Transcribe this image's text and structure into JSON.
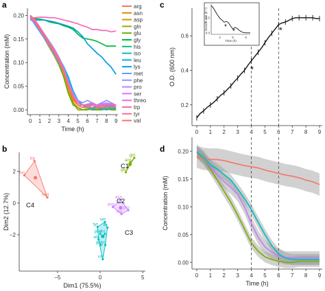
{
  "panels": [
    {
      "id": "a",
      "label": "a"
    },
    {
      "id": "b",
      "label": "b"
    },
    {
      "id": "c",
      "label": "c"
    },
    {
      "id": "d",
      "label": "d"
    }
  ],
  "chart_data": [
    {
      "panel": "a",
      "type": "line",
      "xlabel": "Time (h)",
      "ylabel": "Concentration (mM)",
      "xlim": [
        -0.3,
        9.2
      ],
      "ylim": [
        -0.01,
        0.215
      ],
      "xticks": [
        "0",
        "1",
        "2",
        "3",
        "4",
        "5",
        "6",
        "7",
        "8",
        "9"
      ],
      "yticks": [
        "0.00",
        "0.05",
        "0.10",
        "0.15",
        "0.20"
      ],
      "grid": false,
      "legend_position": "right",
      "x": [
        0,
        0.5,
        1,
        1.5,
        2,
        2.5,
        3,
        3.5,
        4,
        4.5,
        5,
        5.5,
        6,
        6.5,
        7,
        7.5,
        8,
        8.5,
        9
      ],
      "series": [
        {
          "name": "arg",
          "color": "#f2766d",
          "values": [
            0.195,
            0.185,
            0.17,
            0.155,
            0.14,
            0.125,
            0.108,
            0.085,
            0.05,
            0.02,
            0.01,
            0.01,
            0.005,
            0.0,
            0.01,
            0.015,
            0.005,
            0.0,
            0.005
          ]
        },
        {
          "name": "asn",
          "color": "#e58700",
          "values": [
            0.2,
            0.19,
            0.175,
            0.158,
            0.14,
            0.125,
            0.105,
            0.08,
            0.048,
            0.02,
            0.01,
            0.005,
            0.008,
            0.012,
            0.008,
            0.004,
            0.01,
            0.014,
            0.008
          ]
        },
        {
          "name": "asp",
          "color": "#c99800",
          "values": [
            0.2,
            0.188,
            0.172,
            0.155,
            0.138,
            0.12,
            0.102,
            0.078,
            0.04,
            0.015,
            0.005,
            0.0,
            0.002,
            0.004,
            0.003,
            0.002,
            0.004,
            0.003,
            0.002
          ]
        },
        {
          "name": "gln",
          "color": "#a3a500",
          "values": [
            0.198,
            0.185,
            0.168,
            0.15,
            0.132,
            0.115,
            0.095,
            0.07,
            0.035,
            0.015,
            0.0,
            0.0,
            0.002,
            0.0,
            0.0,
            0.003,
            0.0,
            0.002,
            0.0
          ]
        },
        {
          "name": "glu",
          "color": "#6bb100",
          "values": [
            0.2,
            0.19,
            0.172,
            0.155,
            0.138,
            0.12,
            0.098,
            0.07,
            0.035,
            0.01,
            0.005,
            0.0,
            0.0,
            0.002,
            0.0,
            0.0,
            0.002,
            0.0,
            0.0
          ]
        },
        {
          "name": "gly",
          "color": "#00ba38",
          "values": [
            0.195,
            0.193,
            0.192,
            0.19,
            0.186,
            0.184,
            0.182,
            0.178,
            0.175,
            0.17,
            0.16,
            0.152,
            0.15,
            0.148,
            0.145,
            0.14,
            0.135,
            0.135,
            0.135
          ]
        },
        {
          "name": "his",
          "color": "#00bf7d",
          "values": [
            0.2,
            0.188,
            0.17,
            0.152,
            0.135,
            0.12,
            0.102,
            0.08,
            0.055,
            0.03,
            0.015,
            0.01,
            0.01,
            0.015,
            0.01,
            0.01,
            0.012,
            0.01,
            0.01
          ]
        },
        {
          "name": "iso",
          "color": "#00c0b8",
          "values": [
            0.195,
            0.185,
            0.17,
            0.155,
            0.14,
            0.125,
            0.11,
            0.09,
            0.065,
            0.04,
            0.02,
            0.01,
            0.005,
            0.005,
            0.008,
            0.005,
            0.005,
            0.008,
            0.005
          ]
        },
        {
          "name": "leu",
          "color": "#00b0f6",
          "values": [
            0.192,
            0.184,
            0.17,
            0.155,
            0.14,
            0.125,
            0.11,
            0.092,
            0.07,
            0.04,
            0.02,
            0.01,
            0.005,
            0.0,
            0.005,
            0.002,
            0.0,
            0.004,
            0.002
          ]
        },
        {
          "name": "lys",
          "color": "#009edf",
          "values": [
            0.19,
            0.19,
            0.19,
            0.19,
            0.188,
            0.186,
            0.183,
            0.18,
            0.177,
            0.173,
            0.165,
            0.155,
            0.14,
            0.13,
            0.12,
            0.112,
            0.1,
            0.09,
            0.075
          ]
        },
        {
          "name": "met",
          "color": "#619cff",
          "values": [
            0.195,
            0.18,
            0.165,
            0.15,
            0.135,
            0.118,
            0.1,
            0.08,
            0.05,
            0.025,
            0.01,
            0.005,
            0.005,
            0.01,
            0.008,
            0.005,
            0.008,
            0.01,
            0.008
          ]
        },
        {
          "name": "phe",
          "color": "#8f91ff",
          "values": [
            0.2,
            0.19,
            0.175,
            0.16,
            0.145,
            0.13,
            0.112,
            0.09,
            0.06,
            0.035,
            0.02,
            0.015,
            0.02,
            0.015,
            0.01,
            0.015,
            0.02,
            0.015,
            0.01
          ]
        },
        {
          "name": "pro",
          "color": "#b983ff",
          "values": [
            0.198,
            0.188,
            0.172,
            0.158,
            0.142,
            0.128,
            0.11,
            0.088,
            0.06,
            0.03,
            0.015,
            0.01,
            0.012,
            0.015,
            0.01,
            0.012,
            0.015,
            0.012,
            0.01
          ]
        },
        {
          "name": "ser",
          "color": "#db72fb",
          "values": [
            0.195,
            0.185,
            0.17,
            0.155,
            0.14,
            0.122,
            0.105,
            0.08,
            0.05,
            0.025,
            0.01,
            0.005,
            0.005,
            0.005,
            0.005,
            0.005,
            0.005,
            0.005,
            0.005
          ]
        },
        {
          "name": "threo",
          "color": "#f365e6",
          "values": [
            0.2,
            0.188,
            0.172,
            0.156,
            0.14,
            0.124,
            0.106,
            0.082,
            0.052,
            0.028,
            0.015,
            0.01,
            0.012,
            0.01,
            0.008,
            0.01,
            0.012,
            0.01,
            0.008
          ]
        },
        {
          "name": "trp",
          "color": "#ff64b0",
          "values": [
            0.195,
            0.195,
            0.196,
            0.196,
            0.195,
            0.195,
            0.193,
            0.19,
            0.188,
            0.185,
            0.182,
            0.178,
            0.175,
            0.17,
            0.17,
            0.168,
            0.168,
            0.165,
            0.167
          ]
        },
        {
          "name": "tyr",
          "color": "#ff6c91",
          "values": [
            0.2,
            0.19,
            0.174,
            0.158,
            0.142,
            0.126,
            0.108,
            0.085,
            0.055,
            0.03,
            0.015,
            0.01,
            0.01,
            0.012,
            0.01,
            0.008,
            0.01,
            0.012,
            0.01
          ]
        },
        {
          "name": "val",
          "color": "#ff6d6d",
          "values": [
            0.198,
            0.186,
            0.17,
            0.154,
            0.138,
            0.122,
            0.104,
            0.08,
            0.05,
            0.025,
            0.01,
            0.005,
            0.005,
            0.005,
            0.005,
            0.005,
            0.005,
            0.005,
            0.005
          ]
        }
      ]
    },
    {
      "panel": "b",
      "type": "scatter",
      "xlabel": "Dim1 (75.5%)",
      "ylabel": "Dim2 (12.7%)",
      "xlim": [
        -9.5,
        5.3
      ],
      "ylim": [
        -4.3,
        3.2
      ],
      "xticks": [
        -5,
        0,
        5
      ],
      "yticks": [
        2,
        0,
        -2
      ],
      "xtick_labels": [
        "−5",
        "0",
        "5"
      ],
      "ytick_labels": [
        "2",
        "0",
        "−2"
      ],
      "grid": false,
      "clusters": [
        {
          "name": "C1",
          "color": "#7cae00",
          "points": [
            {
              "label": "gln",
              "x": 4.0,
              "y": 2.85
            },
            {
              "label": "arg",
              "x": 3.5,
              "y": 2.55
            },
            {
              "label": "glu",
              "x": 3.0,
              "y": 1.95
            }
          ]
        },
        {
          "name": "C2",
          "color": "#c77cff",
          "points": [
            {
              "label": "asn",
              "x": 2.4,
              "y": 0.2
            },
            {
              "label": "asp",
              "x": 1.5,
              "y": -0.25
            },
            {
              "label": "pro",
              "x": 3.3,
              "y": -0.45
            },
            {
              "label": "leu",
              "x": 2.5,
              "y": -0.7
            }
          ]
        },
        {
          "name": "C3",
          "color": "#00bfc4",
          "points": [
            {
              "label": "ser",
              "x": 0.55,
              "y": -1.2
            },
            {
              "label": "tyr",
              "x": -0.3,
              "y": -1.5
            },
            {
              "label": "ile",
              "x": 0.85,
              "y": -1.55
            },
            {
              "label": "phe",
              "x": 0.0,
              "y": -1.95
            },
            {
              "label": "thr",
              "x": 0.55,
              "y": -1.95
            },
            {
              "label": "ala",
              "x": -0.2,
              "y": -2.3
            },
            {
              "label": "gly",
              "x": 0.05,
              "y": -2.65
            },
            {
              "label": "lys",
              "x": 0.6,
              "y": -2.65
            },
            {
              "label": "val",
              "x": 0.3,
              "y": -3.55
            }
          ]
        },
        {
          "name": "C4",
          "color": "#f8766d",
          "points": [
            {
              "label": "trp",
              "x": -7.7,
              "y": 2.65
            },
            {
              "label": "his",
              "x": -8.9,
              "y": 1.75
            },
            {
              "label": "met",
              "x": -6.2,
              "y": 0.35
            }
          ]
        }
      ],
      "centroids": [
        {
          "name": "C1",
          "x": 3.5,
          "y": 2.45
        },
        {
          "name": "C2",
          "x": 2.4,
          "y": -0.3
        },
        {
          "name": "C3",
          "x": 0.3,
          "y": -2.1
        },
        {
          "name": "C4",
          "x": -7.6,
          "y": 1.6
        }
      ]
    },
    {
      "panel": "c",
      "type": "line",
      "xlabel": "",
      "ylabel": "O.D. (600 nm)",
      "xlim": [
        -0.35,
        9.2
      ],
      "ylim": [
        0.08,
        0.76
      ],
      "xticks": [
        "0",
        "1",
        "2",
        "3",
        "4",
        "5",
        "6",
        "7",
        "8",
        "9"
      ],
      "yticks": [
        "0.2",
        "0.4",
        "0.6"
      ],
      "grid": false,
      "x": [
        0,
        0.25,
        0.5,
        0.75,
        1,
        1.25,
        1.5,
        1.75,
        2,
        2.25,
        2.5,
        2.75,
        3,
        3.25,
        3.5,
        3.75,
        4,
        4.25,
        4.5,
        4.75,
        5,
        5.25,
        5.5,
        5.75,
        6,
        6.25,
        6.5,
        6.75,
        7,
        7.25,
        7.5,
        7.75,
        8,
        8.25,
        8.5,
        8.75,
        9
      ],
      "values": [
        0.125,
        0.15,
        0.165,
        0.185,
        0.2,
        0.215,
        0.235,
        0.255,
        0.27,
        0.29,
        0.31,
        0.335,
        0.355,
        0.38,
        0.4,
        0.43,
        0.455,
        0.48,
        0.505,
        0.53,
        0.56,
        0.59,
        0.615,
        0.64,
        0.665,
        0.675,
        0.68,
        0.69,
        0.7,
        0.705,
        0.705,
        0.705,
        0.705,
        0.705,
        0.705,
        0.7,
        0.7
      ],
      "vlines": [
        4,
        6
      ],
      "markers": [
        {
          "label": "*",
          "x": 4.05,
          "y": 0.405
        },
        {
          "label": "*",
          "x": 6.15,
          "y": 0.63
        }
      ],
      "inset": {
        "xlabel": "Time (h)",
        "ylabel": "Growth rate (h⁻¹)",
        "xticks": [
          "2",
          "5",
          "8"
        ],
        "yticks": [
          "0.0",
          "0.5"
        ],
        "xlim": [
          0,
          9
        ],
        "ylim": [
          -0.05,
          0.95
        ],
        "x": [
          0,
          0.5,
          1,
          1.5,
          2,
          2.5,
          3,
          3.5,
          4,
          4.5,
          5,
          5.5,
          6,
          6.5,
          7,
          7.5,
          8,
          8.5,
          9
        ],
        "values": [
          0.9,
          0.82,
          0.7,
          0.58,
          0.48,
          0.42,
          0.35,
          0.38,
          0.33,
          0.22,
          0.12,
          0.18,
          0.14,
          0.08,
          0.03,
          0.01,
          0.0,
          0.0,
          0.0
        ],
        "markers": [
          {
            "label": "*",
            "x": 3.3,
            "y": 0.22
          },
          {
            "label": "*",
            "x": 5.2,
            "y": 0.08
          }
        ]
      }
    },
    {
      "panel": "d",
      "type": "line",
      "xlabel": "Time (h)",
      "ylabel": "Concentration (mM)",
      "xlim": [
        -0.35,
        9.2
      ],
      "ylim": [
        -0.012,
        0.225
      ],
      "xticks": [
        "0",
        "1",
        "2",
        "3",
        "4",
        "5",
        "6",
        "7",
        "8",
        "9"
      ],
      "yticks": [
        "0.00",
        "0.05",
        "0.10",
        "0.15",
        "0.20"
      ],
      "grid": false,
      "vlines": [
        4,
        6
      ],
      "x": [
        0,
        0.5,
        1,
        1.5,
        2,
        2.5,
        3,
        3.5,
        4,
        4.5,
        5,
        5.5,
        6,
        6.5,
        7,
        7.5,
        8,
        8.5,
        9
      ],
      "series": [
        {
          "color": "#f8766d",
          "values": [
            0.19,
            0.186,
            0.185,
            0.185,
            0.183,
            0.18,
            0.177,
            0.174,
            0.172,
            0.17,
            0.166,
            0.163,
            0.16,
            0.157,
            0.155,
            0.152,
            0.148,
            0.145,
            0.14
          ],
          "band": 0.02
        },
        {
          "color": "#7cae00",
          "values": [
            0.198,
            0.186,
            0.168,
            0.148,
            0.128,
            0.108,
            0.085,
            0.06,
            0.035,
            0.02,
            0.01,
            0.005,
            0.002,
            0.0,
            0.0,
            0.002,
            0.002,
            0.002,
            0.002
          ],
          "band": 0.01
        },
        {
          "color": "#c77cff",
          "values": [
            0.2,
            0.188,
            0.172,
            0.158,
            0.145,
            0.135,
            0.122,
            0.1,
            0.07,
            0.045,
            0.028,
            0.018,
            0.012,
            0.008,
            0.008,
            0.008,
            0.008,
            0.008,
            0.008
          ],
          "band": 0.012
        },
        {
          "color": "#00bfc4",
          "values": [
            0.198,
            0.19,
            0.175,
            0.168,
            0.158,
            0.148,
            0.132,
            0.115,
            0.095,
            0.072,
            0.05,
            0.03,
            0.015,
            0.008,
            0.005,
            0.005,
            0.005,
            0.005,
            0.005
          ],
          "band": 0.01
        }
      ]
    }
  ]
}
